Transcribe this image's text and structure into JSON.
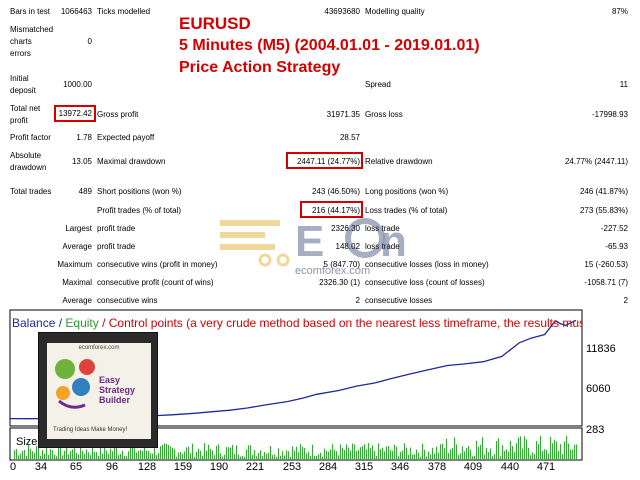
{
  "stats": {
    "bars_in_test": {
      "label": "Bars in test",
      "value": "1066463"
    },
    "ticks_modelled": {
      "label": "Ticks modelled",
      "value": "43693680"
    },
    "modelling_quality": {
      "label": "Modelling quality",
      "value": "87%"
    },
    "mismatched": {
      "label_1": "Mismatched",
      "label_2": "charts",
      "label_3": "errors",
      "value": "0"
    },
    "initial_deposit": {
      "label_1": "Initial",
      "label_2": "deposit",
      "value": "1000.00"
    },
    "spread": {
      "label": "Spread",
      "value": "11"
    },
    "total_net_profit": {
      "label_1": "Total net",
      "label_2": "profit",
      "value": "13972.42"
    },
    "gross_profit": {
      "label": "Gross profit",
      "value": "31971.35"
    },
    "gross_loss": {
      "label": "Gross loss",
      "value": "-17998.93"
    },
    "profit_factor": {
      "label": "Profit factor",
      "value": "1.78"
    },
    "expected_payoff": {
      "label": "Expected payoff",
      "value": "28.57"
    },
    "absolute_drawdown": {
      "label_1": "Absolute",
      "label_2": "drawdown",
      "value": "13.05"
    },
    "maximal_drawdown": {
      "label": "Maximal drawdown",
      "value": "2447.11 (24.77%)"
    },
    "relative_drawdown": {
      "label": "Relative drawdown",
      "value": "24.77% (2447.11)"
    },
    "total_trades": {
      "label": "Total trades",
      "value": "489"
    },
    "short_positions": {
      "label": "Short positions (won %)",
      "value": "243 (46.50%)"
    },
    "long_positions": {
      "label": "Long positions (won %)",
      "value": "246 (41.87%)"
    },
    "profit_trades": {
      "label": "Profit trades (% of total)",
      "value": "216 (44.17%)"
    },
    "loss_trades": {
      "label": "Loss trades (% of total)",
      "value": "273 (55.83%)"
    },
    "largest": {
      "label": "Largest",
      "profit_label": "profit trade",
      "profit_value": "2326.30",
      "loss_label": "loss trade",
      "loss_value": "-227.52"
    },
    "average": {
      "label": "Average",
      "profit_label": "profit trade",
      "profit_value": "148.02",
      "loss_label": "loss trade",
      "loss_value": "-65.93"
    },
    "maximum": {
      "label": "Maximum",
      "wins_label": "consecutive wins (profit in money)",
      "wins_value": "5 (847.70)",
      "losses_label": "consecutive losses (loss in money)",
      "losses_value": "15 (-260.53)"
    },
    "maximal": {
      "label": "Maximal",
      "profit_label": "consecutive profit (count of wins)",
      "profit_value": "2326.30 (1)",
      "loss_label": "consecutive loss (count of losses)",
      "loss_value": "-1058.71 (7)"
    },
    "average_consecutive": {
      "label": "Average",
      "wins_label": "consecutive wins",
      "wins_value": "2",
      "losses_label": "consecutive losses",
      "losses_value": "2"
    }
  },
  "overlay": {
    "line1": "EURUSD",
    "line2": "5 Minutes (M5)  (2004.01.01 - 2019.01.01)",
    "line3": "Price Action Strategy"
  },
  "watermark": {
    "text": "ecomforex.com"
  },
  "chart_legend": {
    "balance": "Balance",
    "sep1": " / ",
    "equity": "Equity",
    "sep2": " / ",
    "rest": "Control points (a very crude method based on the nearest less timeframe, the results must not be considered)"
  },
  "book": {
    "top_text": "ecomforex.com",
    "line1": "Easy",
    "line2": "Strategy",
    "line3": "Builder",
    "tagline": "Trading Ideas Make Money!"
  },
  "colors": {
    "balance": "#1f2a9a",
    "equity": "#2e9a2e",
    "control": "#d40000",
    "highlight": "#d40000",
    "size_bars": "#2fae2f"
  },
  "chart_data": {
    "type": "line",
    "x_ticks": [
      "0",
      "34",
      "65",
      "96",
      "128",
      "159",
      "190",
      "221",
      "253",
      "284",
      "315",
      "346",
      "378",
      "409",
      "440",
      "471"
    ],
    "y_ticks": [
      "11836",
      "6060",
      "283"
    ],
    "size_label": "Size",
    "xlim": [
      0,
      489
    ],
    "ylim": [
      283,
      14800
    ],
    "series": [
      {
        "name": "Balance",
        "x": [
          0,
          15,
          34,
          50,
          65,
          80,
          96,
          112,
          128,
          140,
          159,
          175,
          190,
          205,
          221,
          240,
          253,
          265,
          284,
          300,
          315,
          330,
          346,
          360,
          378,
          392,
          409,
          425,
          440,
          450,
          462,
          471,
          476,
          480,
          489
        ],
        "y": [
          1000,
          980,
          990,
          1005,
          1010,
          1080,
          1130,
          1260,
          1400,
          1500,
          1700,
          1900,
          2100,
          2400,
          2800,
          3250,
          3700,
          4200,
          4700,
          5300,
          5700,
          6300,
          6900,
          7400,
          8000,
          8200,
          8500,
          9200,
          11000,
          11600,
          12100,
          13900,
          13500,
          13300,
          13972
        ]
      }
    ],
    "size_label_values": []
  }
}
